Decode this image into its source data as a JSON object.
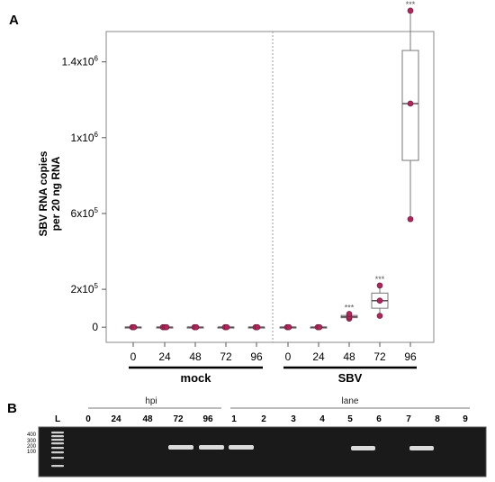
{
  "panel_a": {
    "label": "A",
    "chart_data": {
      "type": "box",
      "ylabel_line1": "SBV RNA copies",
      "ylabel_line2": "per 20 ng RNA",
      "yticks": [
        {
          "value": 0,
          "base": "0",
          "exp": ""
        },
        {
          "value": 200000,
          "base": "2x10",
          "exp": "5"
        },
        {
          "value": 600000,
          "base": "6x10",
          "exp": "5"
        },
        {
          "value": 1000000,
          "base": "1x10",
          "exp": "6"
        },
        {
          "value": 1400000,
          "base": "1.4x10",
          "exp": "6"
        }
      ],
      "ylim": [
        -80000,
        1560000
      ],
      "categories": [
        "0",
        "24",
        "48",
        "72",
        "96",
        "0",
        "24",
        "48",
        "72",
        "96"
      ],
      "groups": [
        {
          "name": "mock",
          "indices": [
            0,
            1,
            2,
            3,
            4
          ]
        },
        {
          "name": "SBV",
          "indices": [
            5,
            6,
            7,
            8,
            9
          ]
        }
      ],
      "boxes": [
        {
          "min": 0,
          "q1": 0,
          "median": 0,
          "q3": 0,
          "max": 0,
          "points": [
            0,
            0
          ],
          "sig": ""
        },
        {
          "min": 0,
          "q1": 0,
          "median": 0,
          "q3": 0,
          "max": 0,
          "points": [
            0,
            0,
            0
          ],
          "sig": ""
        },
        {
          "min": 0,
          "q1": 0,
          "median": 0,
          "q3": 0,
          "max": 0,
          "points": [
            0,
            0
          ],
          "sig": ""
        },
        {
          "min": 0,
          "q1": 0,
          "median": 0,
          "q3": 0,
          "max": 0,
          "points": [
            0,
            0
          ],
          "sig": ""
        },
        {
          "min": 0,
          "q1": 0,
          "median": 0,
          "q3": 0,
          "max": 0,
          "points": [
            0,
            0
          ],
          "sig": ""
        },
        {
          "min": 0,
          "q1": 0,
          "median": 0,
          "q3": 0,
          "max": 0,
          "points": [
            0,
            0
          ],
          "sig": ""
        },
        {
          "min": 0,
          "q1": 0,
          "median": 0,
          "q3": 0,
          "max": 0,
          "points": [
            0,
            0
          ],
          "sig": ""
        },
        {
          "min": 45000,
          "q1": 50000,
          "median": 55000,
          "q3": 62000,
          "max": 70000,
          "points": [
            45000,
            55000,
            70000
          ],
          "sig": "***"
        },
        {
          "min": 60000,
          "q1": 100000,
          "median": 140000,
          "q3": 180000,
          "max": 220000,
          "points": [
            60000,
            140000,
            220000
          ],
          "sig": "***"
        },
        {
          "min": 570000,
          "q1": 880000,
          "median": 1180000,
          "q3": 1460000,
          "max": 1670000,
          "points": [
            570000,
            1180000,
            1670000
          ],
          "sig": "***"
        }
      ],
      "point_color": "#b0255a"
    }
  },
  "panel_b": {
    "label": "B",
    "hpi_label": "hpi",
    "lane_label": "lane",
    "ladder_label": "L",
    "hpi_ticks": [
      "0",
      "24",
      "48",
      "72",
      "96"
    ],
    "lane_ticks": [
      "1",
      "2",
      "3",
      "4",
      "5",
      "6",
      "7",
      "8",
      "9"
    ],
    "size_markers": [
      "400",
      "300",
      "200",
      "100"
    ],
    "hpi_bands": [
      false,
      false,
      true,
      true,
      true
    ],
    "lane_bands": [
      false,
      false,
      false,
      false,
      true,
      false,
      true,
      false,
      false
    ],
    "gel_color": "#1a1a1a",
    "band_color": "#e6e6e6"
  }
}
